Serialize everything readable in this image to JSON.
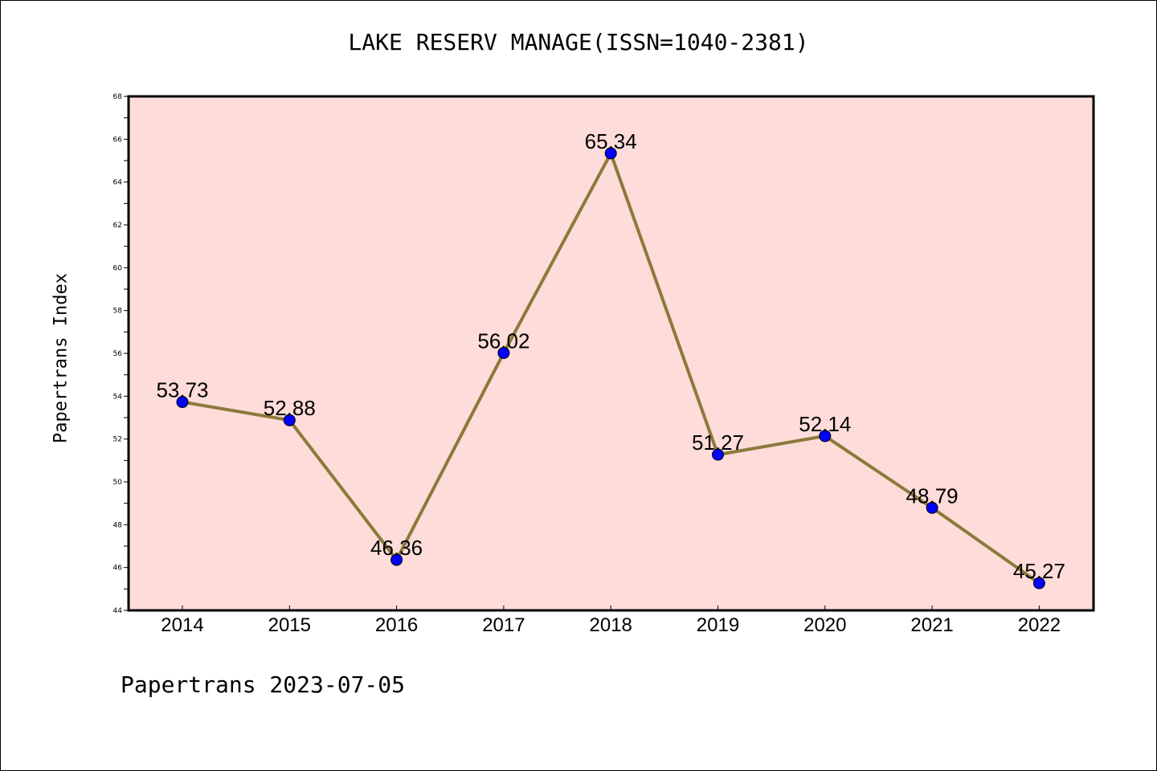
{
  "page": {
    "footer": "Papertrans 2023-07-05"
  },
  "chart_data": {
    "type": "line",
    "title": "LAKE RESERV MANAGE(ISSN=1040-2381)",
    "xlabel": "",
    "ylabel": "Papertrans Index",
    "categories": [
      "2014",
      "2015",
      "2016",
      "2017",
      "2018",
      "2019",
      "2020",
      "2021",
      "2022"
    ],
    "series": [
      {
        "values": [
          53.73,
          52.88,
          46.36,
          56.02,
          65.34,
          51.27,
          52.14,
          48.79,
          45.27
        ],
        "labels": [
          "53.73",
          "52.88",
          "46.36",
          "56.02",
          "65.34",
          "51.27",
          "52.14",
          "48.79",
          "45.27"
        ],
        "line_color": "#8b7a3a",
        "marker_color": "#0000ff"
      }
    ],
    "ylim": [
      44,
      68
    ],
    "y_major_ticks": [
      44,
      46,
      48,
      50,
      52,
      54,
      56,
      58,
      60,
      62,
      64,
      66,
      68
    ],
    "plot_background": "#fddcd9",
    "grid": false,
    "legend": "none"
  }
}
